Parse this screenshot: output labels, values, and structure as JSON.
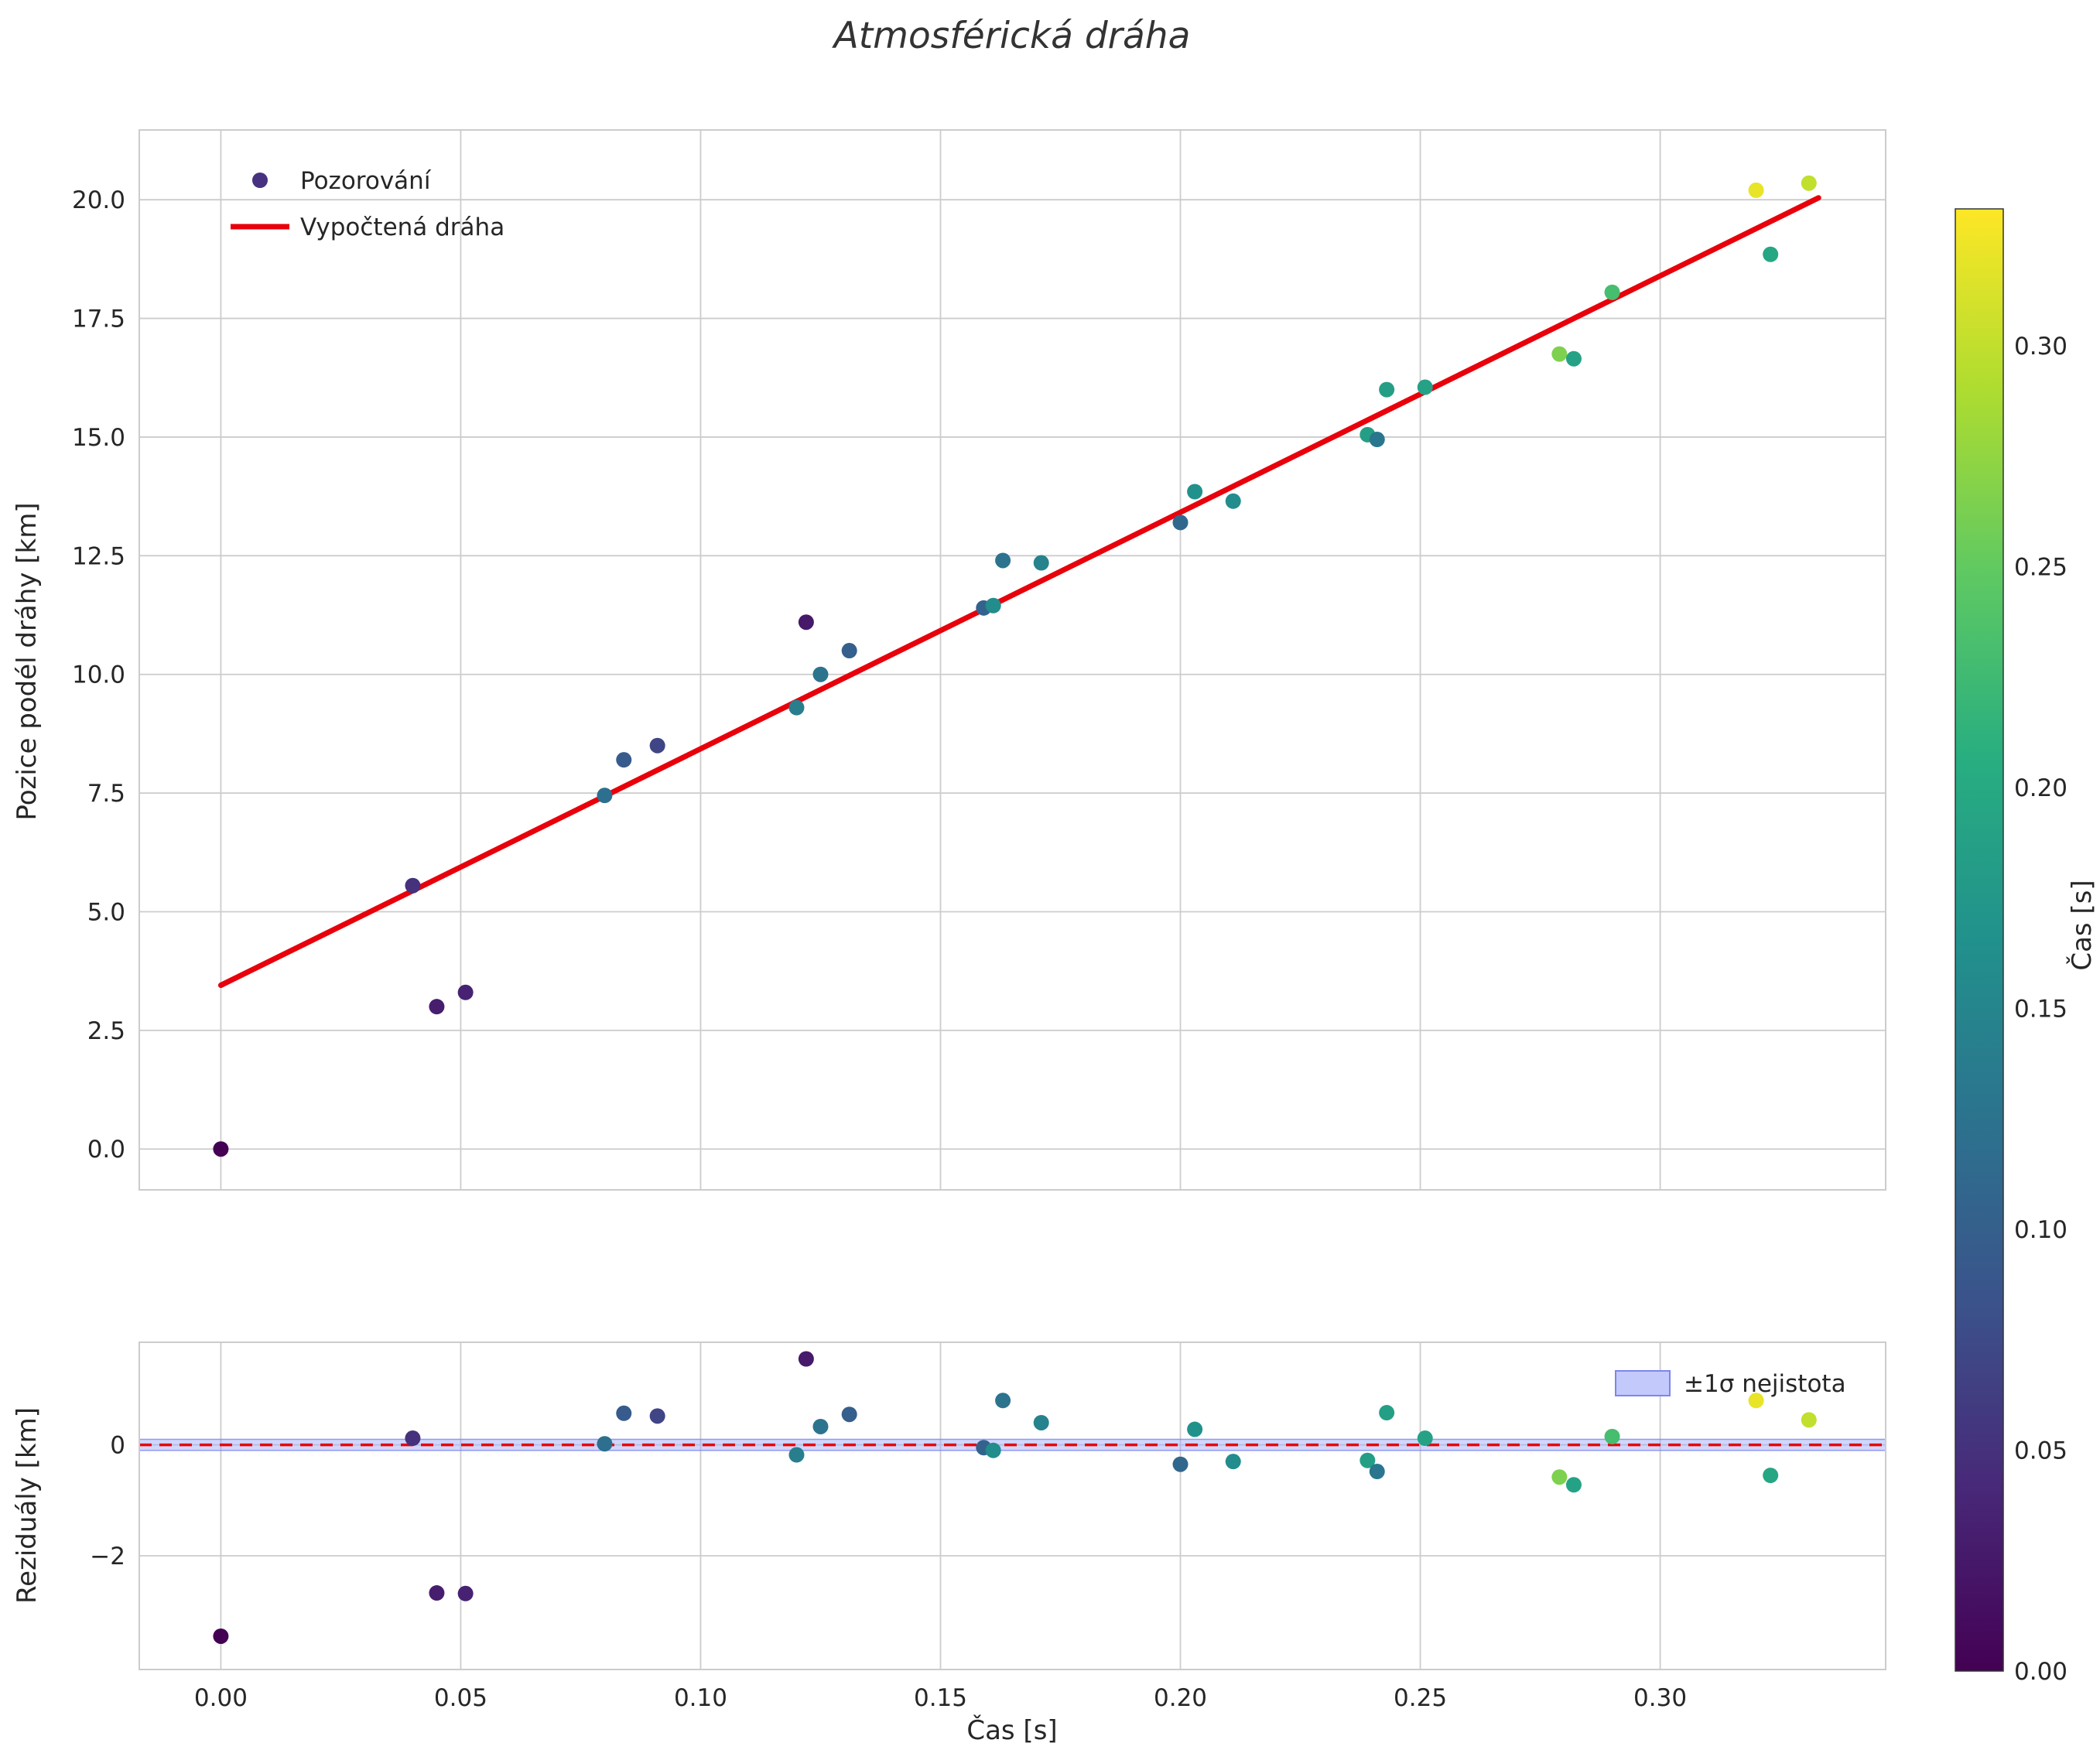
{
  "title": "Atmosférická dráha",
  "colors": {
    "fit_line": "#e8000b",
    "zero_line": "#e8000b",
    "grid": "#cccccc",
    "spine": "#cccccc",
    "text": "#262626",
    "band_fill": "#9aa4f6",
    "band_edge": "#7b86ef",
    "legend_marker": "#46327e"
  },
  "colorbar": {
    "label": "Čas [s]",
    "colormap": "viridis",
    "vmin": 0.0,
    "vmax": 0.331,
    "ticks": [
      0.0,
      0.05,
      0.1,
      0.15,
      0.2,
      0.25,
      0.3
    ],
    "tick_labels": [
      "0.00",
      "0.05",
      "0.10",
      "0.15",
      "0.20",
      "0.25",
      "0.30"
    ]
  },
  "chart_data": [
    {
      "type": "scatter",
      "title": "Atmosférická dráha",
      "xlabel": "",
      "ylabel": "Pozice podél dráhy [km]",
      "xlim": [
        -0.017,
        0.347
      ],
      "ylim": [
        -0.86,
        21.47
      ],
      "grid": true,
      "legend": [
        "Pozorování",
        "Vypočtená dráha"
      ],
      "legend_position": "upper-left",
      "yticks": [
        0.0,
        2.5,
        5.0,
        7.5,
        10.0,
        12.5,
        15.0,
        17.5,
        20.0
      ],
      "ytick_labels": [
        "0.0",
        "2.5",
        "5.0",
        "7.5",
        "10.0",
        "12.5",
        "15.0",
        "17.5",
        "20.0"
      ],
      "xticks": [
        0.0,
        0.05,
        0.1,
        0.15,
        0.2,
        0.25,
        0.3
      ],
      "fit_line": {
        "label": "Vypočtená dráha",
        "color": "#e8000b",
        "x": [
          0.0,
          0.333
        ],
        "y": [
          3.45,
          20.04
        ]
      },
      "points": [
        {
          "t": 0.0,
          "y": 0.0,
          "c": 0.0
        },
        {
          "t": 0.04,
          "y": 5.55,
          "c": 0.05
        },
        {
          "t": 0.045,
          "y": 3.0,
          "c": 0.03
        },
        {
          "t": 0.051,
          "y": 3.3,
          "c": 0.035
        },
        {
          "t": 0.08,
          "y": 7.45,
          "c": 0.12
        },
        {
          "t": 0.084,
          "y": 8.2,
          "c": 0.095
        },
        {
          "t": 0.091,
          "y": 8.5,
          "c": 0.07
        },
        {
          "t": 0.12,
          "y": 9.3,
          "c": 0.14
        },
        {
          "t": 0.122,
          "y": 11.1,
          "c": 0.025
        },
        {
          "t": 0.125,
          "y": 10.0,
          "c": 0.125
        },
        {
          "t": 0.131,
          "y": 10.5,
          "c": 0.1
        },
        {
          "t": 0.159,
          "y": 11.4,
          "c": 0.105
        },
        {
          "t": 0.161,
          "y": 11.45,
          "c": 0.16
        },
        {
          "t": 0.163,
          "y": 12.4,
          "c": 0.125
        },
        {
          "t": 0.171,
          "y": 12.35,
          "c": 0.145
        },
        {
          "t": 0.2,
          "y": 13.2,
          "c": 0.11
        },
        {
          "t": 0.203,
          "y": 13.85,
          "c": 0.165
        },
        {
          "t": 0.211,
          "y": 13.65,
          "c": 0.16
        },
        {
          "t": 0.239,
          "y": 15.05,
          "c": 0.185
        },
        {
          "t": 0.241,
          "y": 14.95,
          "c": 0.13
        },
        {
          "t": 0.243,
          "y": 16.0,
          "c": 0.185
        },
        {
          "t": 0.251,
          "y": 16.05,
          "c": 0.19
        },
        {
          "t": 0.279,
          "y": 16.75,
          "c": 0.265
        },
        {
          "t": 0.282,
          "y": 16.65,
          "c": 0.19
        },
        {
          "t": 0.29,
          "y": 18.05,
          "c": 0.23
        },
        {
          "t": 0.32,
          "y": 20.2,
          "c": 0.32
        },
        {
          "t": 0.323,
          "y": 18.85,
          "c": 0.195
        },
        {
          "t": 0.331,
          "y": 20.35,
          "c": 0.3
        }
      ]
    },
    {
      "type": "scatter",
      "title": "",
      "xlabel": "Čas [s]",
      "ylabel": "Reziduály [km]",
      "xlim": [
        -0.017,
        0.347
      ],
      "ylim": [
        -4.05,
        1.85
      ],
      "grid": true,
      "legend": [
        "±1σ nejistota"
      ],
      "legend_position": "upper-right",
      "yticks": [
        -2,
        0
      ],
      "ytick_labels": [
        "−2",
        "0"
      ],
      "xticks": [
        0.0,
        0.05,
        0.1,
        0.15,
        0.2,
        0.25,
        0.3
      ],
      "xtick_labels": [
        "0.00",
        "0.05",
        "0.10",
        "0.15",
        "0.20",
        "0.25",
        "0.30"
      ],
      "zero_line": {
        "color": "#e8000b",
        "style": "dashed",
        "y": 0
      },
      "band": {
        "label": "±1σ nejistota",
        "center": 0,
        "half_width": 0.1,
        "fill": "#9aa4f6",
        "edge": "#7b86ef"
      },
      "points": [
        {
          "t": 0.0,
          "r": -3.45,
          "c": 0.0
        },
        {
          "t": 0.04,
          "r": 0.12,
          "c": 0.05
        },
        {
          "t": 0.045,
          "r": -2.67,
          "c": 0.03
        },
        {
          "t": 0.051,
          "r": -2.68,
          "c": 0.035
        },
        {
          "t": 0.08,
          "r": 0.02,
          "c": 0.12
        },
        {
          "t": 0.084,
          "r": 0.57,
          "c": 0.095
        },
        {
          "t": 0.091,
          "r": 0.52,
          "c": 0.07
        },
        {
          "t": 0.12,
          "r": -0.18,
          "c": 0.14
        },
        {
          "t": 0.122,
          "r": 1.55,
          "c": 0.025
        },
        {
          "t": 0.125,
          "r": 0.33,
          "c": 0.125
        },
        {
          "t": 0.131,
          "r": 0.55,
          "c": 0.1
        },
        {
          "t": 0.159,
          "r": -0.05,
          "c": 0.105
        },
        {
          "t": 0.161,
          "r": -0.1,
          "c": 0.16
        },
        {
          "t": 0.163,
          "r": 0.8,
          "c": 0.125
        },
        {
          "t": 0.171,
          "r": 0.4,
          "c": 0.145
        },
        {
          "t": 0.2,
          "r": -0.35,
          "c": 0.11
        },
        {
          "t": 0.203,
          "r": 0.28,
          "c": 0.165
        },
        {
          "t": 0.211,
          "r": -0.3,
          "c": 0.16
        },
        {
          "t": 0.239,
          "r": -0.28,
          "c": 0.185
        },
        {
          "t": 0.241,
          "r": -0.48,
          "c": 0.13
        },
        {
          "t": 0.243,
          "r": 0.58,
          "c": 0.185
        },
        {
          "t": 0.251,
          "r": 0.12,
          "c": 0.19
        },
        {
          "t": 0.279,
          "r": -0.58,
          "c": 0.265
        },
        {
          "t": 0.282,
          "r": -0.72,
          "c": 0.19
        },
        {
          "t": 0.29,
          "r": 0.15,
          "c": 0.23
        },
        {
          "t": 0.32,
          "r": 0.8,
          "c": 0.32
        },
        {
          "t": 0.323,
          "r": -0.55,
          "c": 0.195
        },
        {
          "t": 0.331,
          "r": 0.45,
          "c": 0.3
        }
      ]
    }
  ]
}
